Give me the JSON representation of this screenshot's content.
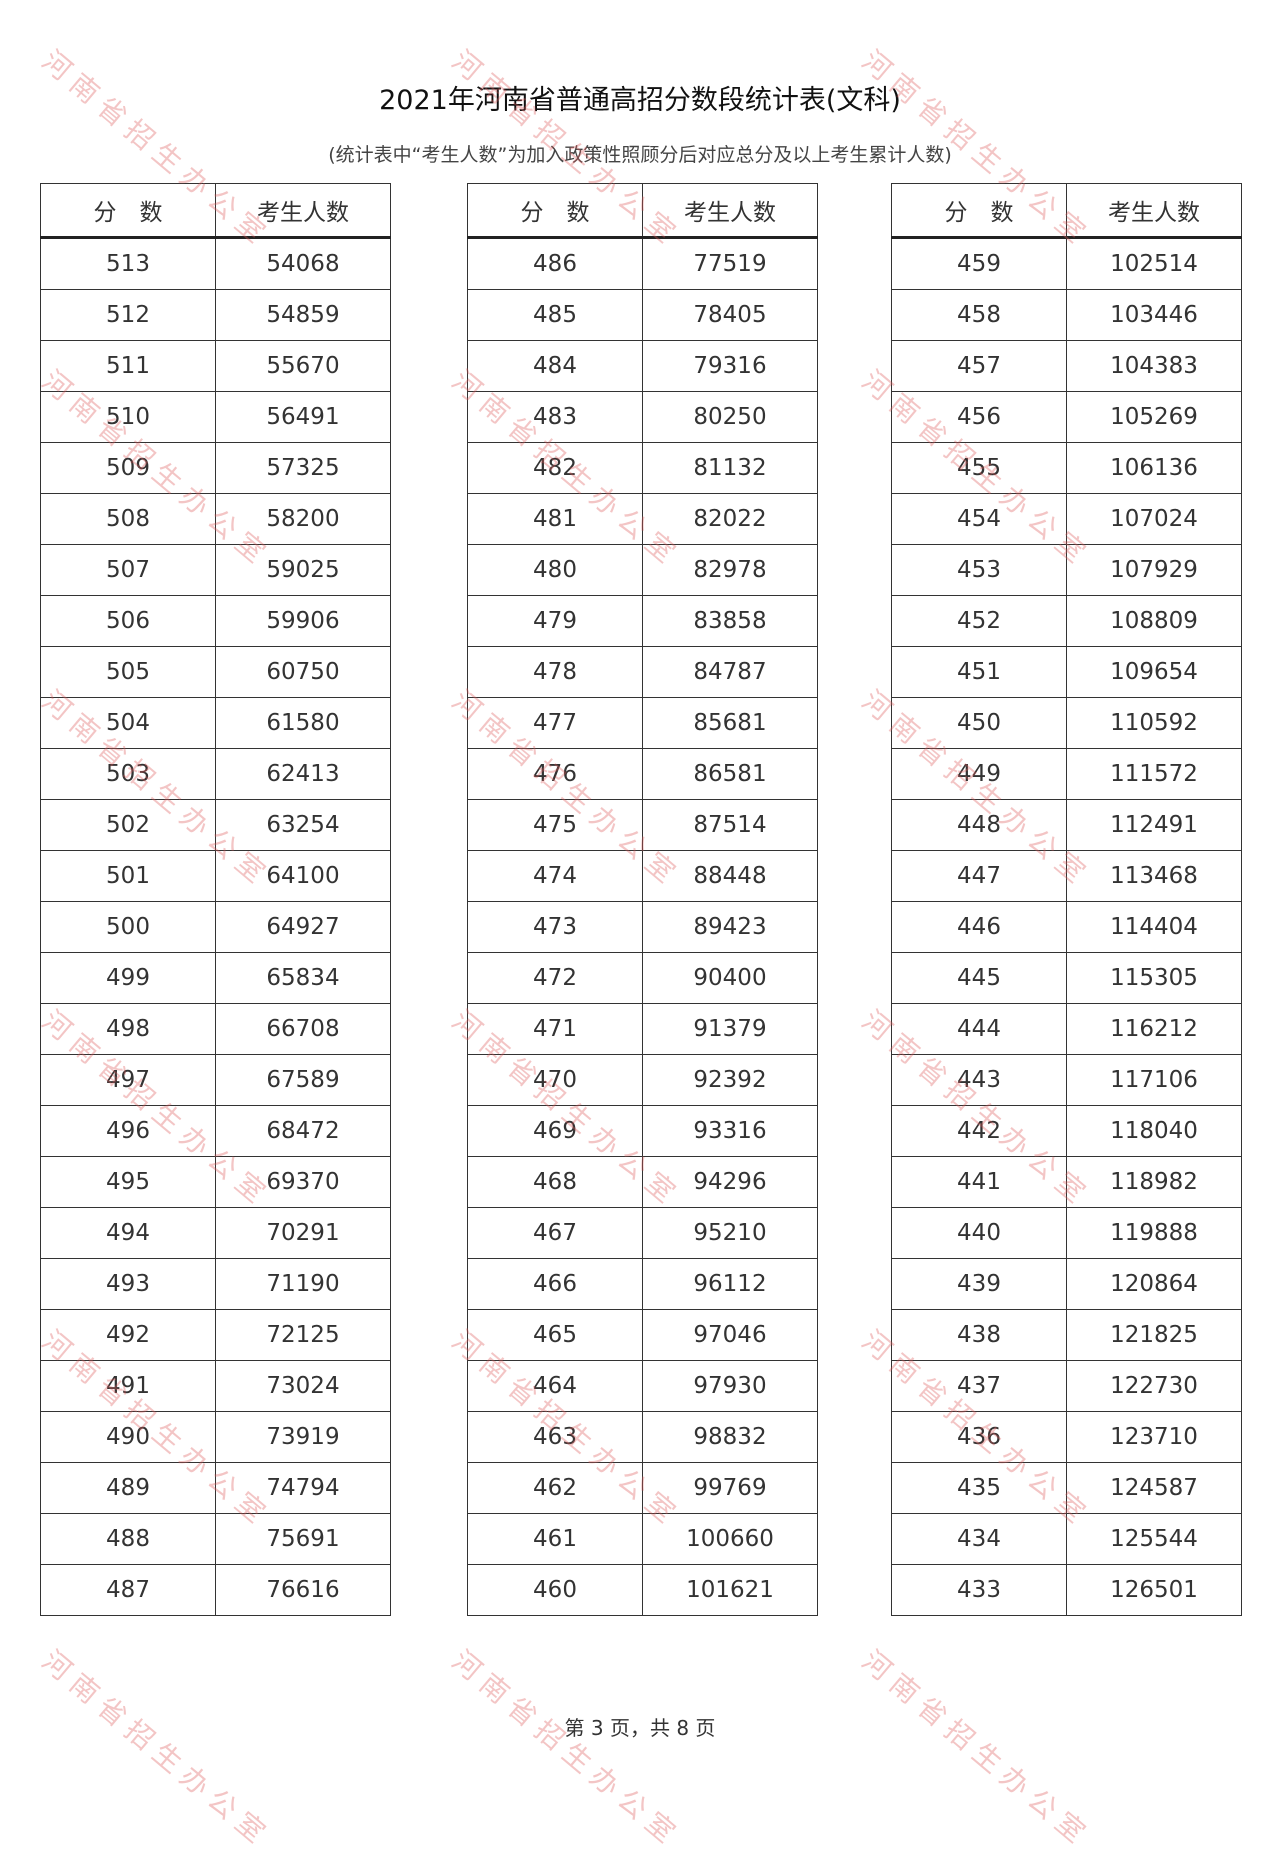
{
  "title": "2021年河南省普通高招分数段统计表(文科)",
  "subtitle": "(统计表中“考生人数”为加入政策性照顾分后对应总分及以上考生累计人数)",
  "headers": {
    "score": "分　数",
    "count": "考生人数"
  },
  "watermark": "河南省招生办公室",
  "footer": "第 3 页，共 8 页",
  "tables": [
    {
      "rows": [
        [
          "513",
          "54068"
        ],
        [
          "512",
          "54859"
        ],
        [
          "511",
          "55670"
        ],
        [
          "510",
          "56491"
        ],
        [
          "509",
          "57325"
        ],
        [
          "508",
          "58200"
        ],
        [
          "507",
          "59025"
        ],
        [
          "506",
          "59906"
        ],
        [
          "505",
          "60750"
        ],
        [
          "504",
          "61580"
        ],
        [
          "503",
          "62413"
        ],
        [
          "502",
          "63254"
        ],
        [
          "501",
          "64100"
        ],
        [
          "500",
          "64927"
        ],
        [
          "499",
          "65834"
        ],
        [
          "498",
          "66708"
        ],
        [
          "497",
          "67589"
        ],
        [
          "496",
          "68472"
        ],
        [
          "495",
          "69370"
        ],
        [
          "494",
          "70291"
        ],
        [
          "493",
          "71190"
        ],
        [
          "492",
          "72125"
        ],
        [
          "491",
          "73024"
        ],
        [
          "490",
          "73919"
        ],
        [
          "489",
          "74794"
        ],
        [
          "488",
          "75691"
        ],
        [
          "487",
          "76616"
        ]
      ]
    },
    {
      "rows": [
        [
          "486",
          "77519"
        ],
        [
          "485",
          "78405"
        ],
        [
          "484",
          "79316"
        ],
        [
          "483",
          "80250"
        ],
        [
          "482",
          "81132"
        ],
        [
          "481",
          "82022"
        ],
        [
          "480",
          "82978"
        ],
        [
          "479",
          "83858"
        ],
        [
          "478",
          "84787"
        ],
        [
          "477",
          "85681"
        ],
        [
          "476",
          "86581"
        ],
        [
          "475",
          "87514"
        ],
        [
          "474",
          "88448"
        ],
        [
          "473",
          "89423"
        ],
        [
          "472",
          "90400"
        ],
        [
          "471",
          "91379"
        ],
        [
          "470",
          "92392"
        ],
        [
          "469",
          "93316"
        ],
        [
          "468",
          "94296"
        ],
        [
          "467",
          "95210"
        ],
        [
          "466",
          "96112"
        ],
        [
          "465",
          "97046"
        ],
        [
          "464",
          "97930"
        ],
        [
          "463",
          "98832"
        ],
        [
          "462",
          "99769"
        ],
        [
          "461",
          "100660"
        ],
        [
          "460",
          "101621"
        ]
      ]
    },
    {
      "rows": [
        [
          "459",
          "102514"
        ],
        [
          "458",
          "103446"
        ],
        [
          "457",
          "104383"
        ],
        [
          "456",
          "105269"
        ],
        [
          "455",
          "106136"
        ],
        [
          "454",
          "107024"
        ],
        [
          "453",
          "107929"
        ],
        [
          "452",
          "108809"
        ],
        [
          "451",
          "109654"
        ],
        [
          "450",
          "110592"
        ],
        [
          "449",
          "111572"
        ],
        [
          "448",
          "112491"
        ],
        [
          "447",
          "113468"
        ],
        [
          "446",
          "114404"
        ],
        [
          "445",
          "115305"
        ],
        [
          "444",
          "116212"
        ],
        [
          "443",
          "117106"
        ],
        [
          "442",
          "118040"
        ],
        [
          "441",
          "118982"
        ],
        [
          "440",
          "119888"
        ],
        [
          "439",
          "120864"
        ],
        [
          "438",
          "121825"
        ],
        [
          "437",
          "122730"
        ],
        [
          "436",
          "123710"
        ],
        [
          "435",
          "124587"
        ],
        [
          "434",
          "125544"
        ],
        [
          "433",
          "126501"
        ]
      ]
    }
  ]
}
